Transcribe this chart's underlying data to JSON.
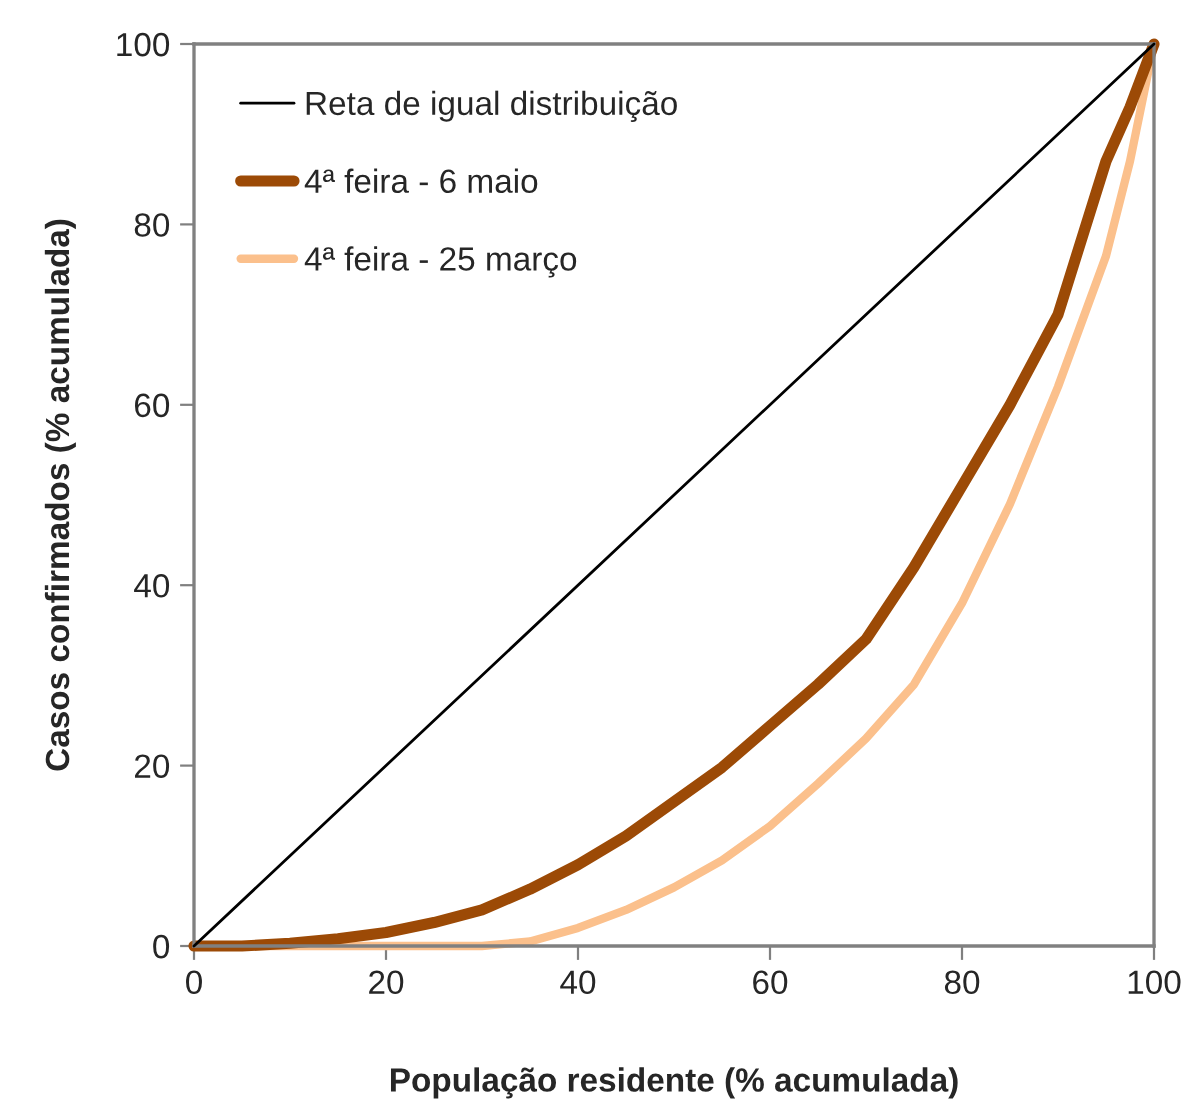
{
  "chart_data": {
    "type": "line",
    "xlabel": "População residente (% acumulada)",
    "ylabel": "Casos confirmados (% acumulada)",
    "xlim": [
      0,
      100
    ],
    "ylim": [
      0,
      100
    ],
    "xticks": [
      0,
      20,
      40,
      60,
      80,
      100
    ],
    "yticks": [
      0,
      20,
      40,
      60,
      80,
      100
    ],
    "grid": false,
    "legend": "top left",
    "marker": "none",
    "line_style": "solid",
    "series": [
      {
        "name": "Reta de igual distribuição",
        "color": "#000000",
        "x": [
          0,
          100
        ],
        "values": [
          0,
          100
        ]
      },
      {
        "name": "4ª feira - 6 maio",
        "color": "#9c4a06",
        "x": [
          0,
          5,
          10,
          15,
          20,
          25,
          30,
          35,
          40,
          45,
          50,
          55,
          60,
          65,
          70,
          75,
          80,
          85,
          90,
          95,
          97.5,
          100
        ],
        "values": [
          0,
          0,
          0.3,
          0.8,
          1.5,
          2.6,
          4,
          6.3,
          9,
          12.2,
          16,
          19.8,
          24.4,
          29,
          34,
          42,
          51,
          60,
          70,
          87,
          93,
          100
        ]
      },
      {
        "name": "4ª feira - 25 março",
        "color": "#fbc08c",
        "x": [
          0,
          10,
          20,
          30,
          35,
          40,
          45,
          50,
          55,
          60,
          65,
          70,
          75,
          80,
          85,
          90,
          95,
          97.5,
          100
        ],
        "values": [
          0,
          0,
          0,
          0,
          0.5,
          2,
          4,
          6.5,
          9.5,
          13.3,
          18,
          23,
          29,
          38,
          49,
          62,
          76.5,
          87,
          100
        ]
      }
    ]
  }
}
